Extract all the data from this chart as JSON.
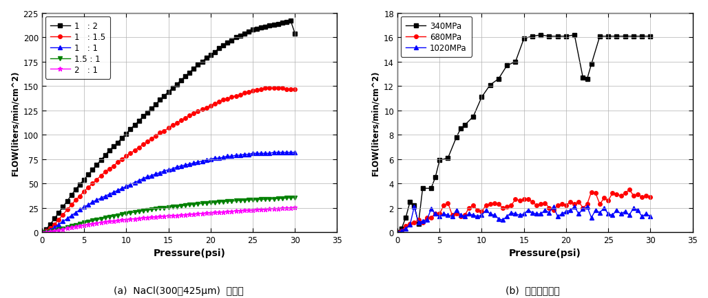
{
  "chart_a": {
    "title": "(a)  NaCl(300～425μm)  혼합비",
    "xlabel": "Pressure(psi)",
    "ylabel": "FLOW(liters/min/cm^2)",
    "xlim": [
      0,
      35
    ],
    "ylim": [
      0,
      225
    ],
    "xticks": [
      0,
      5,
      10,
      15,
      20,
      25,
      30,
      35
    ],
    "yticks": [
      0,
      25,
      50,
      75,
      100,
      125,
      150,
      175,
      200,
      225
    ],
    "series": [
      {
        "label": "1   : 2",
        "color": "#000000",
        "marker": "s",
        "x": [
          0,
          0.5,
          1,
          1.5,
          2,
          2.5,
          3,
          3.5,
          4,
          4.5,
          5,
          5.5,
          6,
          6.5,
          7,
          7.5,
          8,
          8.5,
          9,
          9.5,
          10,
          10.5,
          11,
          11.5,
          12,
          12.5,
          13,
          13.5,
          14,
          14.5,
          15,
          15.5,
          16,
          16.5,
          17,
          17.5,
          18,
          18.5,
          19,
          19.5,
          20,
          20.5,
          21,
          21.5,
          22,
          22.5,
          23,
          23.5,
          24,
          24.5,
          25,
          25.5,
          26,
          26.5,
          27,
          27.5,
          28,
          28.5,
          29,
          29.5,
          30
        ],
        "y": [
          0,
          3,
          8,
          14,
          20,
          26,
          32,
          38,
          44,
          49,
          54,
          59,
          64,
          69,
          74,
          79,
          84,
          88,
          92,
          97,
          101,
          106,
          110,
          114,
          119,
          123,
          127,
          131,
          136,
          140,
          144,
          148,
          152,
          156,
          160,
          164,
          168,
          172,
          175,
          179,
          182,
          185,
          189,
          192,
          195,
          197,
          200,
          202,
          204,
          206,
          208,
          209,
          210,
          211,
          212,
          213,
          214,
          215,
          216,
          217,
          204
        ]
      },
      {
        "label": "1   : 1.5",
        "color": "#ff0000",
        "marker": "o",
        "x": [
          0,
          0.5,
          1,
          1.5,
          2,
          2.5,
          3,
          3.5,
          4,
          4.5,
          5,
          5.5,
          6,
          6.5,
          7,
          7.5,
          8,
          8.5,
          9,
          9.5,
          10,
          10.5,
          11,
          11.5,
          12,
          12.5,
          13,
          13.5,
          14,
          14.5,
          15,
          15.5,
          16,
          16.5,
          17,
          17.5,
          18,
          18.5,
          19,
          19.5,
          20,
          20.5,
          21,
          21.5,
          22,
          22.5,
          23,
          23.5,
          24,
          24.5,
          25,
          25.5,
          26,
          26.5,
          27,
          27.5,
          28,
          28.5,
          29,
          29.5,
          30
        ],
        "y": [
          0,
          1.5,
          4,
          8,
          13,
          18,
          23,
          28,
          33,
          37,
          42,
          46,
          50,
          54,
          58,
          62,
          65,
          68,
          72,
          75,
          78,
          81,
          84,
          87,
          90,
          93,
          96,
          99,
          102,
          104,
          107,
          110,
          112,
          115,
          117,
          120,
          122,
          124,
          126,
          128,
          130,
          132,
          134,
          136,
          137,
          139,
          140,
          141,
          143,
          144,
          145,
          146,
          147,
          148,
          148,
          148,
          148,
          148,
          147,
          147,
          147
        ]
      },
      {
        "label": "1   : 1",
        "color": "#0000ff",
        "marker": "^",
        "x": [
          0,
          0.5,
          1,
          1.5,
          2,
          2.5,
          3,
          3.5,
          4,
          4.5,
          5,
          5.5,
          6,
          6.5,
          7,
          7.5,
          8,
          8.5,
          9,
          9.5,
          10,
          10.5,
          11,
          11.5,
          12,
          12.5,
          13,
          13.5,
          14,
          14.5,
          15,
          15.5,
          16,
          16.5,
          17,
          17.5,
          18,
          18.5,
          19,
          19.5,
          20,
          20.5,
          21,
          21.5,
          22,
          22.5,
          23,
          23.5,
          24,
          24.5,
          25,
          25.5,
          26,
          26.5,
          27,
          27.5,
          28,
          28.5,
          29,
          29.5,
          30
        ],
        "y": [
          0,
          1,
          2.5,
          5,
          8,
          11,
          14,
          17,
          20,
          23,
          26,
          28,
          31,
          33,
          35,
          37,
          39,
          41,
          43,
          45,
          47,
          49,
          51,
          53,
          55,
          57,
          58,
          60,
          61,
          63,
          64,
          65,
          67,
          68,
          69,
          70,
          71,
          72,
          73,
          74,
          75,
          76,
          76,
          77,
          78,
          78,
          79,
          79,
          80,
          80,
          81,
          81,
          81,
          81,
          81,
          82,
          82,
          82,
          82,
          82,
          82
        ]
      },
      {
        "label": "1.5 : 1",
        "color": "#008000",
        "marker": "v",
        "x": [
          0,
          0.5,
          1,
          1.5,
          2,
          2.5,
          3,
          3.5,
          4,
          4.5,
          5,
          5.5,
          6,
          6.5,
          7,
          7.5,
          8,
          8.5,
          9,
          9.5,
          10,
          10.5,
          11,
          11.5,
          12,
          12.5,
          13,
          13.5,
          14,
          14.5,
          15,
          15.5,
          16,
          16.5,
          17,
          17.5,
          18,
          18.5,
          19,
          19.5,
          20,
          20.5,
          21,
          21.5,
          22,
          22.5,
          23,
          23.5,
          24,
          24.5,
          25,
          25.5,
          26,
          26.5,
          27,
          27.5,
          28,
          28.5,
          29,
          29.5,
          30
        ],
        "y": [
          0,
          0.4,
          1,
          1.8,
          2.8,
          3.8,
          5,
          6.2,
          7.4,
          8.5,
          9.6,
          10.7,
          11.8,
          12.8,
          13.8,
          14.7,
          15.6,
          16.5,
          17.3,
          18.1,
          19,
          19.8,
          20.5,
          21.2,
          21.9,
          22.6,
          23.2,
          23.8,
          24.4,
          25,
          25.5,
          26,
          26.5,
          27,
          27.5,
          28,
          28.5,
          29,
          29.4,
          29.8,
          30.2,
          30.6,
          31,
          31.3,
          31.6,
          31.9,
          32.2,
          32.5,
          32.8,
          33,
          33.2,
          33.4,
          33.6,
          33.8,
          34,
          34.2,
          34.5,
          34.7,
          35,
          35.2,
          35.5
        ]
      },
      {
        "label": "2   : 1",
        "color": "#ff00ff",
        "marker": "*",
        "x": [
          0,
          0.5,
          1,
          1.5,
          2,
          2.5,
          3,
          3.5,
          4,
          4.5,
          5,
          5.5,
          6,
          6.5,
          7,
          7.5,
          8,
          8.5,
          9,
          9.5,
          10,
          10.5,
          11,
          11.5,
          12,
          12.5,
          13,
          13.5,
          14,
          14.5,
          15,
          15.5,
          16,
          16.5,
          17,
          17.5,
          18,
          18.5,
          19,
          19.5,
          20,
          20.5,
          21,
          21.5,
          22,
          22.5,
          23,
          23.5,
          24,
          24.5,
          25,
          25.5,
          26,
          26.5,
          27,
          27.5,
          28,
          28.5,
          29,
          29.5,
          30
        ],
        "y": [
          0,
          0.2,
          0.6,
          1.2,
          2,
          3,
          4,
          5,
          5.8,
          6.6,
          7.4,
          8.1,
          8.8,
          9.4,
          10,
          10.5,
          11,
          11.5,
          12,
          12.5,
          13,
          13.5,
          13.8,
          14.2,
          14.6,
          15,
          15.3,
          15.7,
          16,
          16.3,
          16.7,
          17,
          17.3,
          17.6,
          18,
          18.3,
          18.6,
          19,
          19.3,
          19.6,
          19.9,
          20.2,
          20.5,
          20.8,
          21.1,
          21.4,
          21.7,
          22,
          22.3,
          22.6,
          22.9,
          23.1,
          23.3,
          23.5,
          23.8,
          24,
          24.2,
          24.5,
          24.8,
          25,
          25.5
        ]
      }
    ]
  },
  "chart_b": {
    "title": "(b)  분말압축성형",
    "xlabel": "Pressure(psi)",
    "ylabel": "FLOW(liters/min/cm^2)",
    "xlim": [
      0,
      35
    ],
    "ylim": [
      0,
      18
    ],
    "xticks": [
      0,
      5,
      10,
      15,
      20,
      25,
      30,
      35
    ],
    "yticks": [
      0,
      2,
      4,
      6,
      8,
      10,
      12,
      14,
      16,
      18
    ],
    "series": [
      {
        "label": "340MPa",
        "color": "#000000",
        "marker": "s",
        "x": [
          0,
          0.5,
          1,
          1.5,
          2,
          2.5,
          3,
          4,
          4.5,
          5,
          6,
          7,
          7.5,
          8,
          9,
          10,
          11,
          12,
          13,
          14,
          15,
          16,
          17,
          18,
          19,
          20,
          21,
          22,
          22.5,
          23,
          24,
          25,
          26,
          27,
          28,
          29,
          30
        ],
        "y": [
          0,
          0.3,
          1.2,
          2.5,
          2.2,
          0.7,
          3.6,
          3.6,
          4.5,
          5.9,
          6.1,
          7.8,
          8.5,
          8.8,
          9.5,
          11.1,
          12.1,
          12.6,
          13.7,
          14.0,
          15.9,
          16.1,
          16.2,
          16.1,
          16.1,
          16.1,
          16.2,
          12.7,
          12.6,
          13.8,
          16.1,
          16.1,
          16.1,
          16.1,
          16.1,
          16.1,
          16.1
        ]
      },
      {
        "label": "680MPa",
        "color": "#ff0000",
        "marker": "o",
        "x": [
          0,
          0.5,
          1,
          1.5,
          2,
          2.5,
          3,
          3.5,
          4,
          4.5,
          5,
          5.5,
          6,
          6.5,
          7,
          7.5,
          8,
          8.5,
          9,
          9.5,
          10,
          10.5,
          11,
          11.5,
          12,
          12.5,
          13,
          13.5,
          14,
          14.5,
          15,
          15.5,
          16,
          16.5,
          17,
          17.5,
          18,
          18.5,
          19,
          19.5,
          20,
          20.5,
          21,
          21.5,
          22,
          22.5,
          23,
          23.5,
          24,
          24.5,
          25,
          25.5,
          26,
          26.5,
          27,
          27.5,
          28,
          28.5,
          29,
          29.5,
          30
        ],
        "y": [
          0,
          0.1,
          0.5,
          0.7,
          0.8,
          1.0,
          0.8,
          1.2,
          1.2,
          1.5,
          1.5,
          2.2,
          2.4,
          1.4,
          1.5,
          1.3,
          1.4,
          2.0,
          2.2,
          1.8,
          1.7,
          2.2,
          2.3,
          2.4,
          2.3,
          2.0,
          2.1,
          2.2,
          2.7,
          2.6,
          2.7,
          2.7,
          2.5,
          2.2,
          2.3,
          2.4,
          2.0,
          1.8,
          2.2,
          2.3,
          2.2,
          2.5,
          2.3,
          2.5,
          2.0,
          2.3,
          3.3,
          3.2,
          2.3,
          2.8,
          2.6,
          3.2,
          3.1,
          3.0,
          3.2,
          3.5,
          3.0,
          3.1,
          2.9,
          3.0,
          2.9
        ]
      },
      {
        "label": "1020MPa",
        "color": "#0000ff",
        "marker": "^",
        "x": [
          0,
          0.5,
          1,
          1.5,
          2,
          2.5,
          3,
          3.5,
          4,
          4.5,
          5,
          5.5,
          6,
          6.5,
          7,
          7.5,
          8,
          8.5,
          9,
          9.5,
          10,
          10.5,
          11,
          11.5,
          12,
          12.5,
          13,
          13.5,
          14,
          14.5,
          15,
          15.5,
          16,
          16.5,
          17,
          17.5,
          18,
          18.5,
          19,
          19.5,
          20,
          20.5,
          21,
          21.5,
          22,
          22.5,
          23,
          23.5,
          24,
          24.5,
          25,
          25.5,
          26,
          26.5,
          27,
          27.5,
          28,
          28.5,
          29,
          29.5,
          30
        ],
        "y": [
          0,
          0.1,
          0.3,
          0.6,
          2.1,
          0.8,
          0.9,
          1.0,
          1.9,
          1.5,
          1.3,
          1.5,
          1.4,
          1.3,
          1.8,
          1.4,
          1.3,
          1.5,
          1.4,
          1.3,
          1.4,
          1.8,
          1.5,
          1.4,
          1.1,
          1.0,
          1.3,
          1.6,
          1.5,
          1.4,
          1.5,
          1.8,
          1.6,
          1.5,
          1.5,
          1.8,
          1.6,
          2.1,
          1.3,
          1.5,
          1.7,
          1.8,
          2.1,
          1.5,
          1.9,
          2.1,
          1.2,
          1.8,
          1.6,
          2.0,
          1.5,
          1.4,
          1.8,
          1.5,
          1.7,
          1.4,
          2.0,
          1.8,
          1.3,
          1.5,
          1.3
        ]
      }
    ]
  }
}
